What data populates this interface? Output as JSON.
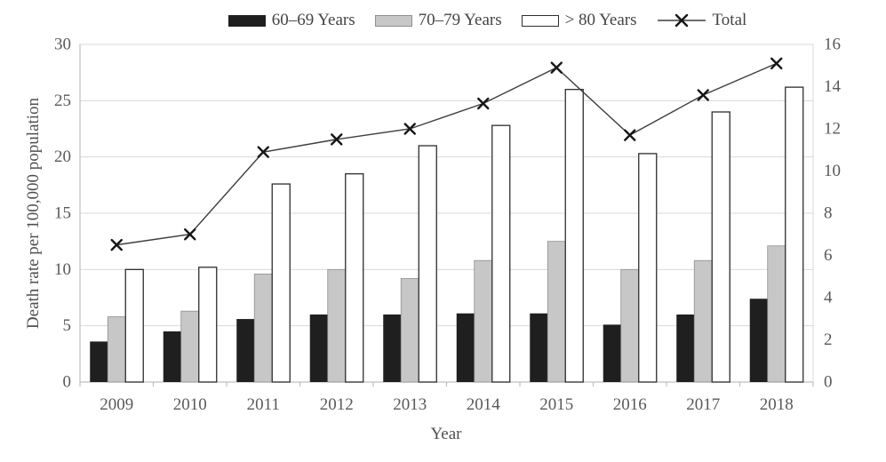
{
  "chart_data": {
    "type": "bar+line",
    "title": "",
    "categories": [
      "2009",
      "2010",
      "2011",
      "2012",
      "2013",
      "2014",
      "2015",
      "2016",
      "2017",
      "2018"
    ],
    "series": [
      {
        "name": "60–69 Years",
        "type": "bar",
        "axis": "left",
        "color": "#1f1f1f",
        "border": "none",
        "values": [
          3.6,
          4.5,
          5.6,
          6.0,
          6.0,
          6.1,
          6.1,
          5.1,
          6.0,
          7.4
        ]
      },
      {
        "name": "70–79 Years",
        "type": "bar",
        "axis": "left",
        "color": "#c7c7c7",
        "border": "#8f8f8f",
        "values": [
          5.8,
          6.3,
          9.6,
          10.0,
          9.2,
          10.8,
          12.5,
          10.0,
          10.8,
          12.1
        ]
      },
      {
        "name": "> 80 Years",
        "type": "bar",
        "axis": "left",
        "color": "#ffffff",
        "border": "#2e2e2e",
        "values": [
          10.0,
          10.2,
          17.6,
          18.5,
          21.0,
          22.8,
          26.0,
          20.3,
          24.0,
          26.2
        ]
      },
      {
        "name": "Total",
        "type": "line",
        "axis": "right",
        "color": "#3d3d3d",
        "marker": "x",
        "marker_color": "#161616",
        "values": [
          6.5,
          7.0,
          10.9,
          11.5,
          12.0,
          13.2,
          14.9,
          11.7,
          13.6,
          15.1
        ]
      }
    ],
    "xlabel": "Year",
    "ylabel": "Death rate per 100,000 population",
    "left_axis": {
      "min": 0,
      "max": 30,
      "step": 5,
      "ticks": [
        0,
        5,
        10,
        15,
        20,
        25,
        30
      ]
    },
    "right_axis": {
      "min": 0,
      "max": 16,
      "step": 2,
      "ticks": [
        0,
        2,
        4,
        6,
        8,
        10,
        12,
        14,
        16
      ]
    },
    "grid": true,
    "legend_position": "top",
    "colors": {
      "grid": "#d9d9d9",
      "axis": "#bfbfbf",
      "tick": "#bfbfbf",
      "text": "#595959"
    }
  }
}
